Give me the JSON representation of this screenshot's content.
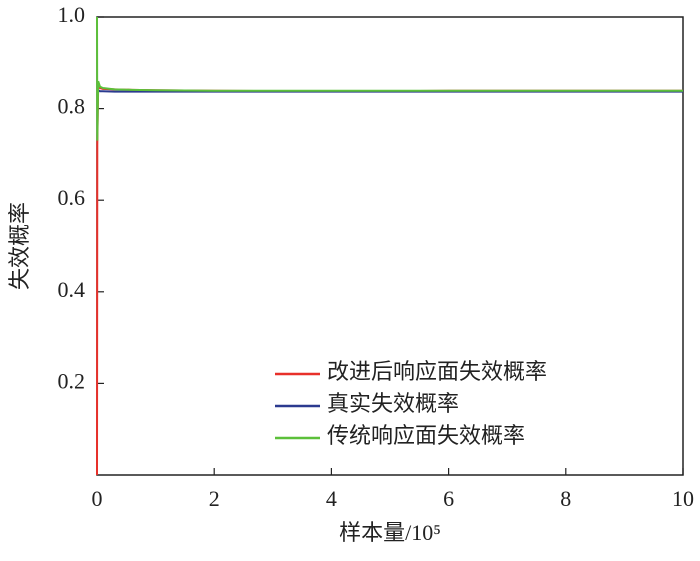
{
  "chart_data": {
    "type": "line",
    "x_label": "样本量/10⁵",
    "y_label": "失效概率",
    "x": [
      0,
      0.005,
      0.02,
      0.05,
      0.1,
      0.3,
      0.6,
      1,
      2,
      3,
      4,
      5,
      6,
      7,
      8,
      9,
      10
    ],
    "series": [
      {
        "name": "改进后响应面失效概率",
        "color": "#e8302a",
        "values": [
          0,
          0.72,
          0.85,
          0.845,
          0.843,
          0.842,
          0.841,
          0.84,
          0.839,
          0.838,
          0.838,
          0.838,
          0.839,
          0.839,
          0.839,
          0.839,
          0.839
        ]
      },
      {
        "name": "真实失效概率",
        "color": "#2b3a8f",
        "values": [
          null,
          null,
          0.84,
          0.838,
          0.838,
          0.837,
          0.837,
          0.837,
          0.837,
          0.837,
          0.837,
          0.837,
          0.837,
          0.837,
          0.837,
          0.837,
          0.837
        ]
      },
      {
        "name": "传统响应面失效概率",
        "color": "#5cc03a",
        "values": [
          1,
          0.73,
          0.86,
          0.848,
          0.845,
          0.842,
          0.841,
          0.84,
          0.839,
          0.839,
          0.839,
          0.839,
          0.839,
          0.839,
          0.839,
          0.839,
          0.839
        ]
      }
    ],
    "xlim": [
      0,
      10
    ],
    "xticks": [
      0,
      2,
      4,
      6,
      8,
      10
    ],
    "ylim": [
      0,
      1
    ],
    "yticks": [
      0.2,
      0.4,
      0.6,
      0.8,
      {
        "value": 1,
        "label": "1.0"
      }
    ],
    "legend": "lower right"
  }
}
